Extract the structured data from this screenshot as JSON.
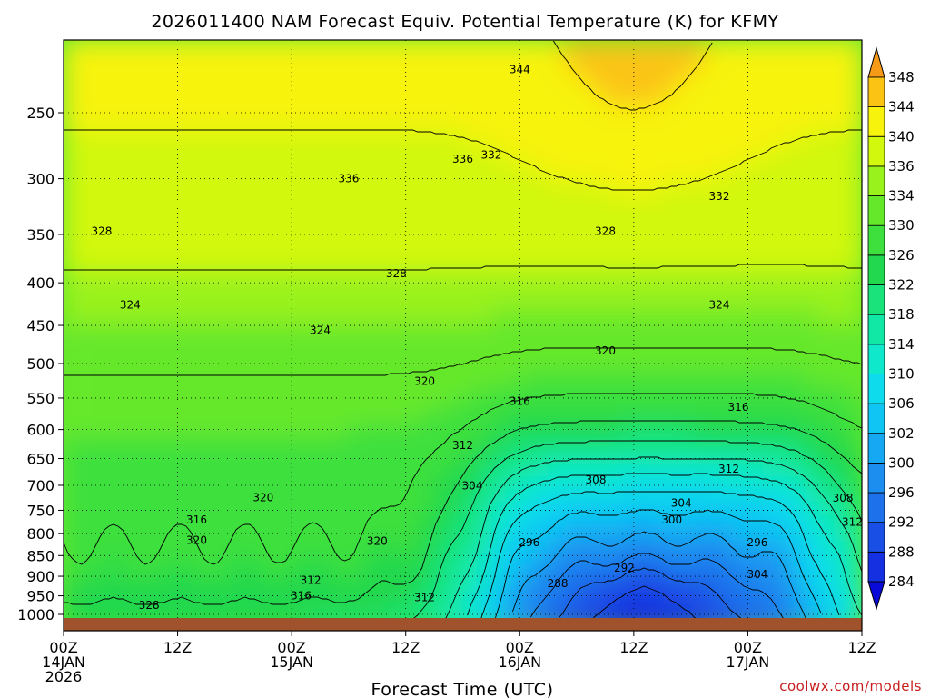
{
  "chart_data": {
    "type": "heatmap",
    "title": "2026011400 NAM Forecast Equiv. Potential Temperature (K) for KFMY",
    "xlabel": "Forecast Time (UTC)",
    "ylabel": "",
    "x_ticks": [
      {
        "hour": 0,
        "line1": "00Z",
        "line2": "14JAN",
        "line3": "2026"
      },
      {
        "hour": 12,
        "line1": "12Z",
        "line2": "",
        "line3": ""
      },
      {
        "hour": 24,
        "line1": "00Z",
        "line2": "15JAN",
        "line3": ""
      },
      {
        "hour": 36,
        "line1": "12Z",
        "line2": "",
        "line3": ""
      },
      {
        "hour": 48,
        "line1": "00Z",
        "line2": "16JAN",
        "line3": ""
      },
      {
        "hour": 60,
        "line1": "12Z",
        "line2": "",
        "line3": ""
      },
      {
        "hour": 72,
        "line1": "00Z",
        "line2": "17JAN",
        "line3": ""
      },
      {
        "hour": 84,
        "line1": "12Z",
        "line2": "",
        "line3": ""
      }
    ],
    "xlim": [
      0,
      84
    ],
    "y_ticks": [
      250,
      300,
      350,
      400,
      450,
      500,
      550,
      600,
      650,
      700,
      750,
      800,
      850,
      900,
      950,
      1000
    ],
    "ylim": [
      1010,
      200
    ],
    "y_scale": "log-pressure",
    "grid": true,
    "ground_color": "#a0522d",
    "colorbar": {
      "levels": [
        284,
        288,
        292,
        296,
        300,
        302,
        306,
        310,
        314,
        318,
        322,
        326,
        330,
        334,
        336,
        340,
        344,
        348
      ],
      "colors": [
        "#0a0ad8",
        "#1530e0",
        "#1a4fe6",
        "#1d72ec",
        "#1c8ef0",
        "#16a8f3",
        "#10c4f3",
        "#0edcec",
        "#10e8cc",
        "#12e8a6",
        "#19e37a",
        "#22d84e",
        "#3ee03e",
        "#66e82a",
        "#9af21c",
        "#d2f80e",
        "#f7f30c",
        "#fbc414",
        "#f79a18"
      ],
      "extend": "both"
    },
    "series": [
      {
        "name": "",
        "values": [
          {
            "theta": 344,
            "label_x": 48,
            "label_p": 222
          },
          {
            "theta": 336,
            "label_x": 30,
            "label_p": 300
          },
          {
            "theta": 336,
            "label_x": 42,
            "label_p": 284
          },
          {
            "theta": 332,
            "label_x": 45,
            "label_p": 281
          },
          {
            "theta": 332,
            "label_x": 69,
            "label_p": 315
          },
          {
            "theta": 328,
            "label_x": 4,
            "label_p": 347
          },
          {
            "theta": 328,
            "label_x": 57,
            "label_p": 347
          },
          {
            "theta": 328,
            "label_x": 35,
            "label_p": 390
          },
          {
            "theta": 324,
            "label_x": 7,
            "label_p": 425
          },
          {
            "theta": 324,
            "label_x": 69,
            "label_p": 425
          },
          {
            "theta": 324,
            "label_x": 27,
            "label_p": 456
          },
          {
            "theta": 320,
            "label_x": 57,
            "label_p": 483
          },
          {
            "theta": 320,
            "label_x": 38,
            "label_p": 525
          },
          {
            "theta": 316,
            "label_x": 48,
            "label_p": 555
          },
          {
            "theta": 316,
            "label_x": 71,
            "label_p": 564
          },
          {
            "theta": 312,
            "label_x": 42,
            "label_p": 627
          },
          {
            "theta": 312,
            "label_x": 70,
            "label_p": 669
          },
          {
            "theta": 308,
            "label_x": 56,
            "label_p": 690
          },
          {
            "theta": 308,
            "label_x": 82,
            "label_p": 725
          },
          {
            "theta": 304,
            "label_x": 43,
            "label_p": 701
          },
          {
            "theta": 304,
            "label_x": 65,
            "label_p": 735
          },
          {
            "theta": 304,
            "label_x": 73,
            "label_p": 895
          },
          {
            "theta": 300,
            "label_x": 64,
            "label_p": 770
          },
          {
            "theta": 296,
            "label_x": 49,
            "label_p": 820
          },
          {
            "theta": 296,
            "label_x": 73,
            "label_p": 820
          },
          {
            "theta": 292,
            "label_x": 59,
            "label_p": 880
          },
          {
            "theta": 288,
            "label_x": 52,
            "label_p": 918
          },
          {
            "theta": 320,
            "label_x": 21,
            "label_p": 724
          },
          {
            "theta": 316,
            "label_x": 14,
            "label_p": 770
          },
          {
            "theta": 320,
            "label_x": 14,
            "label_p": 815
          },
          {
            "theta": 320,
            "label_x": 33,
            "label_p": 817
          },
          {
            "theta": 312,
            "label_x": 26,
            "label_p": 910
          },
          {
            "theta": 316,
            "label_x": 25,
            "label_p": 950
          },
          {
            "theta": 312,
            "label_x": 38,
            "label_p": 955
          },
          {
            "theta": 312,
            "label_x": 83,
            "label_p": 775
          },
          {
            "theta": 328,
            "label_x": 9,
            "label_p": 975
          }
        ]
      }
    ]
  },
  "credit": "coolwx.com/models"
}
